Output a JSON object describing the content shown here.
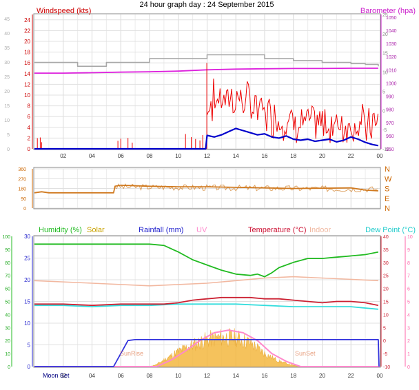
{
  "title": "24 hour graph day : 24 September 2015",
  "colors": {
    "windspeed": "#ee0000",
    "barometer": "#dd22dd",
    "gust": "#a8a8a8",
    "wind_avg": "#0000cc",
    "direction": "#d07a20",
    "humidity": "#22bb22",
    "solar": "#f4b840",
    "rainfall": "#3333dd",
    "uv": "#ff88cc",
    "temperature": "#cc2233",
    "indoor": "#f2b8a0",
    "dewpoint": "#33dddd"
  },
  "chart_data": [
    {
      "type": "line",
      "panel": "wind",
      "x_ticks": [
        "02",
        "04",
        "06",
        "08",
        "10",
        "12",
        "14",
        "16",
        "18",
        "20",
        "22",
        "00"
      ],
      "left_axis": {
        "label": "Windspeed (kts)",
        "ticks": [
          "0",
          "2",
          "4",
          "6",
          "8",
          "10",
          "12",
          "14",
          "16",
          "18",
          "20",
          "22",
          "24"
        ],
        "ylim": [
          0,
          25
        ]
      },
      "outer_left_axis": {
        "ticks": [
          "0",
          "5",
          "10",
          "15",
          "20",
          "25",
          "30",
          "35",
          "40",
          "45"
        ]
      },
      "inner_right_axis": {
        "ticks": [
          "-10",
          "-5",
          "0",
          "5",
          "10",
          "15",
          "20",
          "25"
        ],
        "ylim": [
          -10,
          25
        ]
      },
      "right_axis": {
        "label": "Barometer (hpa)",
        "ticks": [
          "950",
          "960",
          "970",
          "980",
          "990",
          "1000",
          "1010",
          "1020",
          "1030",
          "1040",
          "1050"
        ],
        "ylim": [
          950,
          1052
        ]
      },
      "series": [
        {
          "name": "Barometer (hpa)",
          "axis": "right",
          "x": [
            0,
            2,
            4,
            6,
            8,
            10,
            12,
            14,
            16,
            18,
            20,
            22,
            23.9
          ],
          "values": [
            1007.5,
            1007.5,
            1007.8,
            1008.2,
            1008.5,
            1009,
            1010,
            1010.5,
            1010.8,
            1011,
            1011,
            1011.2,
            1011.2
          ]
        },
        {
          "axis": "inner_right",
          "x": [
            0,
            2,
            3,
            4,
            5,
            6,
            8,
            10,
            11.9,
            12,
            14,
            16,
            18,
            20,
            22,
            23,
            23.9
          ],
          "values": [
            12.5,
            12.5,
            11.5,
            11.5,
            12.5,
            12.5,
            13.5,
            13.5,
            13.5,
            14.5,
            14.5,
            13.5,
            13.0,
            12.5,
            12.2,
            12.0,
            11.5
          ]
        },
        {
          "axis": "left",
          "x": [
            0,
            1,
            2,
            4,
            6,
            8,
            10,
            11.9,
            12.0,
            12.5,
            13,
            13.5,
            14,
            14.5,
            15,
            15.5,
            16,
            16.5,
            17,
            17.5,
            18,
            18.5,
            19,
            19.5,
            20,
            20.5,
            21,
            21.5,
            22,
            22.5,
            23,
            23.5,
            23.9
          ],
          "values": [
            0,
            0,
            0,
            0,
            0,
            0,
            0,
            0,
            2.5,
            2.2,
            2.6,
            3.2,
            3.8,
            3.4,
            3.0,
            2.6,
            2.8,
            2.2,
            2.0,
            2.4,
            1.8,
            1.6,
            1.8,
            1.4,
            1.6,
            1.8,
            1.3,
            1.6,
            2.2,
            1.8,
            1.2,
            0.8,
            0.6
          ]
        }
      ]
    },
    {
      "type": "line",
      "panel": "direction",
      "x_ticks": [
        "02",
        "04",
        "06",
        "08",
        "10",
        "12",
        "14",
        "16",
        "18",
        "20",
        "22",
        "00"
      ],
      "left_axis": {
        "ticks": [
          "0",
          "90",
          "180",
          "270",
          "360"
        ],
        "ylim": [
          0,
          360
        ]
      },
      "right_axis": {
        "ticks": [
          "N",
          "E",
          "S",
          "W",
          "N"
        ]
      },
      "series": [
        {
          "x": [
            0,
            0.5,
            1,
            2,
            4,
            5,
            5.5,
            5.6,
            6,
            8,
            10,
            12,
            14,
            16,
            18,
            20,
            22,
            23,
            23.9
          ],
          "values": [
            140,
            150,
            140,
            140,
            140,
            140,
            140,
            200,
            210,
            200,
            195,
            195,
            190,
            185,
            180,
            182,
            185,
            165,
            158
          ]
        }
      ]
    },
    {
      "type": "line",
      "panel": "climate",
      "x_ticks": [
        "02",
        "04",
        "06",
        "08",
        "10",
        "12",
        "14",
        "16",
        "18",
        "20",
        "22",
        "00"
      ],
      "left_axis": {
        "ticks": [
          "0",
          "10",
          "20",
          "30",
          "40",
          "50",
          "60",
          "70",
          "80",
          "90",
          "100"
        ],
        "ylim": [
          0,
          100
        ]
      },
      "inner_left_axis": {
        "ticks": [
          "0",
          "5",
          "10",
          "15",
          "20",
          "25",
          "30"
        ],
        "ylim": [
          0,
          30
        ]
      },
      "inner_right_axis": {
        "ticks": [
          "-10",
          "-5",
          "0",
          "5",
          "10",
          "15",
          "20",
          "25",
          "30",
          "35",
          "40"
        ],
        "ylim": [
          -10,
          40
        ]
      },
      "right_axis": {
        "ticks": [
          "0",
          "1",
          "2",
          "3",
          "4",
          "5",
          "6",
          "7",
          "8",
          "9",
          "10"
        ],
        "ylim": [
          0,
          10
        ]
      },
      "header_labels": [
        "Humidity (%)",
        "Solar",
        "Rainfall (mm)",
        "UV",
        "Temperature (°C)",
        "Indoor",
        "Dew Point (°C)"
      ],
      "annotations": [
        "Moon Set",
        "SunRise",
        "SunSet"
      ],
      "series": [
        {
          "name": "Humidity (%)",
          "axis": "left",
          "x": [
            0,
            2,
            4,
            6,
            8,
            9,
            10,
            11,
            12,
            13,
            14,
            15,
            15.5,
            16,
            16.5,
            17,
            18,
            19,
            20,
            21,
            22,
            23,
            23.9
          ],
          "values": [
            94,
            94,
            94,
            94,
            94,
            93,
            88,
            82,
            78,
            74,
            71,
            70,
            71,
            69,
            72,
            76,
            80,
            83,
            83,
            84,
            85,
            86,
            88
          ]
        },
        {
          "name": "Solar",
          "axis": "left",
          "x": [
            0,
            8,
            8.5,
            9,
            10,
            11,
            12,
            13,
            14,
            15,
            16,
            17,
            18,
            19,
            24
          ],
          "values": [
            0,
            0,
            2,
            6,
            14,
            20,
            25,
            27,
            27,
            22,
            12,
            5,
            1,
            0,
            0
          ]
        },
        {
          "name": "Rainfall (mm)",
          "axis": "inner_left",
          "x": [
            0,
            5.5,
            6,
            6.5,
            7,
            23.9,
            23.95
          ],
          "values": [
            0,
            0,
            3,
            6,
            6.2,
            6.2,
            0
          ]
        },
        {
          "name": "UV",
          "axis": "right",
          "x": [
            0,
            8.5,
            9.5,
            10.5,
            11.5,
            12.5,
            13.5,
            14.5,
            15.5,
            16.5,
            17.5,
            18.5,
            24
          ],
          "values": [
            0,
            0,
            0.5,
            1.2,
            2.0,
            2.6,
            2.8,
            2.6,
            2.0,
            1.0,
            0.4,
            0,
            0
          ]
        },
        {
          "name": "Temperature (°C)",
          "axis": "inner_right",
          "x": [
            0,
            2,
            4,
            6,
            8,
            9,
            10,
            11,
            12,
            13,
            14,
            15,
            16,
            17,
            18,
            19,
            20,
            21,
            22,
            23,
            23.9
          ],
          "values": [
            14,
            14,
            13.5,
            14,
            14,
            14,
            14.5,
            15.5,
            16,
            16.5,
            16.5,
            16.5,
            16,
            16,
            15.5,
            15,
            14.5,
            15,
            15,
            14.5,
            13.5
          ]
        },
        {
          "name": "Indoor",
          "axis": "inner_right",
          "x": [
            0,
            4,
            8,
            10,
            12,
            14,
            16,
            18,
            20,
            22,
            23.9
          ],
          "values": [
            23,
            22,
            21,
            21.5,
            22,
            23,
            24,
            24.5,
            24,
            23.5,
            23
          ]
        },
        {
          "name": "Dew Point (°C)",
          "axis": "inner_right",
          "x": [
            0,
            2,
            4,
            6,
            8,
            10,
            12,
            14,
            16,
            18,
            20,
            22,
            23.9
          ],
          "values": [
            13.5,
            13.5,
            13,
            13.5,
            13.5,
            14,
            14,
            14,
            13.5,
            13,
            13,
            13,
            12
          ]
        }
      ]
    }
  ]
}
